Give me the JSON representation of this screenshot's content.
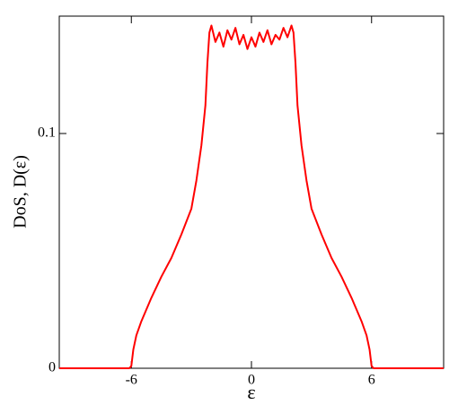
{
  "chart_data": {
    "type": "line",
    "xlabel": "ε",
    "ylabel": "DoS, D(ε)",
    "x": [
      -9.6,
      -6.1,
      -6.0,
      -5.9,
      -5.75,
      -5.5,
      -5,
      -4.5,
      -4,
      -3.5,
      -3,
      -2.75,
      -2.5,
      -2.3,
      -2.2,
      -2.1,
      -2.0,
      -1.8,
      -1.6,
      -1.4,
      -1.2,
      -1.0,
      -0.8,
      -0.6,
      -0.4,
      -0.2,
      0,
      0.2,
      0.4,
      0.6,
      0.8,
      1.0,
      1.2,
      1.4,
      1.6,
      1.8,
      2.0,
      2.1,
      2.2,
      2.3,
      2.5,
      2.75,
      3,
      3.5,
      4,
      4.5,
      5,
      5.5,
      5.75,
      5.9,
      6.0,
      6.1,
      9.6
    ],
    "series": [
      {
        "name": "DoS",
        "color": "#ff0000",
        "values": [
          0,
          0,
          0.001,
          0.008,
          0.014,
          0.02,
          0.03,
          0.039,
          0.047,
          0.057,
          0.068,
          0.08,
          0.095,
          0.112,
          0.13,
          0.143,
          0.146,
          0.139,
          0.143,
          0.137,
          0.144,
          0.14,
          0.145,
          0.138,
          0.142,
          0.136,
          0.141,
          0.137,
          0.143,
          0.139,
          0.144,
          0.138,
          0.142,
          0.14,
          0.145,
          0.141,
          0.146,
          0.143,
          0.13,
          0.112,
          0.095,
          0.08,
          0.068,
          0.057,
          0.047,
          0.039,
          0.03,
          0.02,
          0.014,
          0.008,
          0.001,
          0,
          0
        ]
      }
    ],
    "xlim": [
      -9.6,
      9.6
    ],
    "ylim": [
      0,
      0.15
    ],
    "xticks": [
      -6,
      0,
      6
    ],
    "yticks": [
      0,
      0.1
    ]
  }
}
